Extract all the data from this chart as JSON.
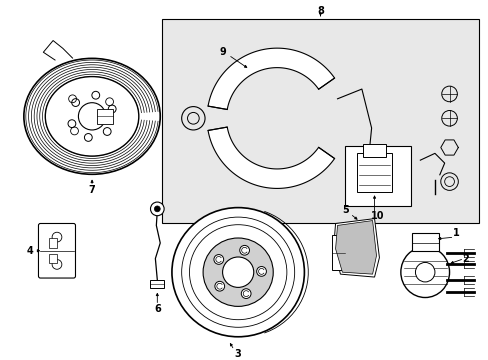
{
  "figsize": [
    4.89,
    3.6
  ],
  "dpi": 100,
  "background_color": "#ffffff",
  "box_fill": "#e8e8e8",
  "lc": "black"
}
